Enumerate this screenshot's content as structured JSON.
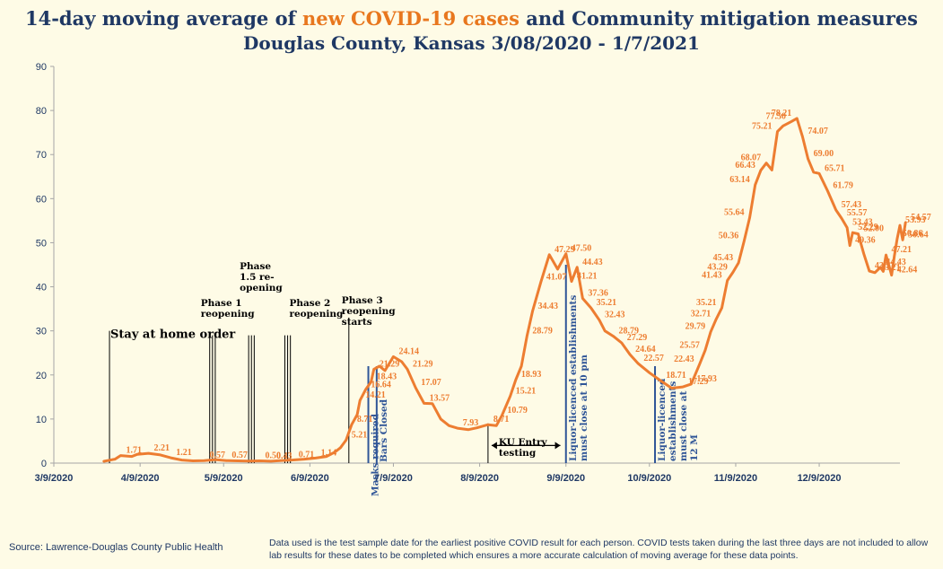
{
  "title": {
    "prefix": "14-day moving average of ",
    "highlight": "new COVID-19 cases",
    "suffix": " and Community mitigation measures",
    "line2": "Douglas County, Kansas 3/08/2020 - 1/7/2021"
  },
  "source": "Source:  Lawrence-Douglas County Public Health",
  "note": "Data used is the test sample date for the earliest positive COVID result for each person.  COVID tests taken during the last three days are not included to allow lab results for these dates to be completed which ensures a more accurate calculation of moving average for these data points.",
  "colors": {
    "line": "#ed7d31",
    "title": "#1f3864",
    "annotation_blue": "#2f5597",
    "background": "#fefbe6"
  },
  "chart_data": {
    "type": "line",
    "title": "14-day moving average of new COVID-19 cases and Community mitigation measures Douglas County, Kansas 3/08/2020 - 1/7/2021",
    "xlabel": "",
    "ylabel": "",
    "ylim": [
      0,
      90
    ],
    "yticks": [
      0,
      10,
      20,
      30,
      40,
      50,
      60,
      70,
      80,
      90
    ],
    "xlim": [
      "2020-03-09",
      "2021-01-07"
    ],
    "xticks": [
      "3/9/2020",
      "4/9/2020",
      "5/9/2020",
      "6/9/2020",
      "7/9/2020",
      "8/9/2020",
      "9/9/2020",
      "10/9/2020",
      "11/9/2020",
      "12/9/2020"
    ],
    "grid": false,
    "series": [
      {
        "points": [
          [
            "2020-03-27",
            0.4
          ],
          [
            "2020-03-31",
            0.9
          ],
          [
            "2020-04-02",
            1.71
          ],
          [
            "2020-04-06",
            1.5
          ],
          [
            "2020-04-08",
            2.0
          ],
          [
            "2020-04-12",
            2.21
          ],
          [
            "2020-04-16",
            1.9
          ],
          [
            "2020-04-20",
            1.21
          ],
          [
            "2020-04-24",
            0.7
          ],
          [
            "2020-04-28",
            0.5
          ],
          [
            "2020-05-02",
            0.57
          ],
          [
            "2020-05-06",
            0.8
          ],
          [
            "2020-05-10",
            0.57
          ],
          [
            "2020-05-14",
            0.5
          ],
          [
            "2020-05-18",
            0.45
          ],
          [
            "2020-05-22",
            0.5
          ],
          [
            "2020-05-26",
            0.43
          ],
          [
            "2020-05-30",
            0.6
          ],
          [
            "2020-06-03",
            0.71
          ],
          [
            "2020-06-07",
            0.9
          ],
          [
            "2020-06-11",
            1.14
          ],
          [
            "2020-06-15",
            1.5
          ],
          [
            "2020-06-18",
            2.5
          ],
          [
            "2020-06-20",
            3.5
          ],
          [
            "2020-06-22",
            5.21
          ],
          [
            "2020-06-24",
            8.71
          ],
          [
            "2020-06-26",
            11.0
          ],
          [
            "2020-06-27",
            14.21
          ],
          [
            "2020-06-29",
            16.64
          ],
          [
            "2020-07-01",
            18.43
          ],
          [
            "2020-07-02",
            21.29
          ],
          [
            "2020-07-04",
            22.0
          ],
          [
            "2020-07-06",
            21.0
          ],
          [
            "2020-07-09",
            24.14
          ],
          [
            "2020-07-12",
            23.0
          ],
          [
            "2020-07-14",
            21.29
          ],
          [
            "2020-07-17",
            17.07
          ],
          [
            "2020-07-20",
            13.57
          ],
          [
            "2020-07-23",
            13.5
          ],
          [
            "2020-07-26",
            10.0
          ],
          [
            "2020-07-29",
            8.5
          ],
          [
            "2020-08-01",
            7.93
          ],
          [
            "2020-08-05",
            7.6
          ],
          [
            "2020-08-08",
            8.0
          ],
          [
            "2020-08-12",
            8.71
          ],
          [
            "2020-08-15",
            8.5
          ],
          [
            "2020-08-17",
            10.79
          ],
          [
            "2020-08-20",
            15.21
          ],
          [
            "2020-08-22",
            18.93
          ],
          [
            "2020-08-24",
            22.0
          ],
          [
            "2020-08-26",
            28.79
          ],
          [
            "2020-08-28",
            34.43
          ],
          [
            "2020-08-31",
            41.07
          ],
          [
            "2020-09-03",
            47.29
          ],
          [
            "2020-09-06",
            44.0
          ],
          [
            "2020-09-09",
            47.5
          ],
          [
            "2020-09-11",
            41.21
          ],
          [
            "2020-09-13",
            44.43
          ],
          [
            "2020-09-15",
            37.36
          ],
          [
            "2020-09-18",
            35.21
          ],
          [
            "2020-09-21",
            32.43
          ],
          [
            "2020-09-23",
            30.0
          ],
          [
            "2020-09-26",
            28.79
          ],
          [
            "2020-09-29",
            27.29
          ],
          [
            "2020-10-02",
            24.64
          ],
          [
            "2020-10-05",
            22.57
          ],
          [
            "2020-10-09",
            20.5
          ],
          [
            "2020-10-13",
            18.71
          ],
          [
            "2020-10-17",
            17.0
          ],
          [
            "2020-10-21",
            17.29
          ],
          [
            "2020-10-24",
            17.93
          ],
          [
            "2020-10-27",
            22.43
          ],
          [
            "2020-10-29",
            25.57
          ],
          [
            "2020-10-31",
            29.79
          ],
          [
            "2020-11-02",
            32.71
          ],
          [
            "2020-11-04",
            35.21
          ],
          [
            "2020-11-06",
            41.43
          ],
          [
            "2020-11-08",
            43.29
          ],
          [
            "2020-11-10",
            45.43
          ],
          [
            "2020-11-12",
            50.36
          ],
          [
            "2020-11-14",
            55.64
          ],
          [
            "2020-11-16",
            63.14
          ],
          [
            "2020-11-18",
            66.43
          ],
          [
            "2020-11-20",
            68.07
          ],
          [
            "2020-11-22",
            66.5
          ],
          [
            "2020-11-24",
            75.21
          ],
          [
            "2020-11-26",
            76.5
          ],
          [
            "2020-11-29",
            77.5
          ],
          [
            "2020-12-01",
            78.21
          ],
          [
            "2020-12-03",
            74.07
          ],
          [
            "2020-12-05",
            69.0
          ],
          [
            "2020-12-07",
            66.0
          ],
          [
            "2020-12-09",
            65.71
          ],
          [
            "2020-12-12",
            61.79
          ],
          [
            "2020-12-15",
            57.43
          ],
          [
            "2020-12-17",
            55.57
          ],
          [
            "2020-12-19",
            53.43
          ],
          [
            "2020-12-20",
            49.36
          ],
          [
            "2020-12-21",
            52.29
          ],
          [
            "2020-12-23",
            52.0
          ],
          [
            "2020-12-25",
            47.5
          ],
          [
            "2020-12-27",
            43.57
          ],
          [
            "2020-12-29",
            43.21
          ],
          [
            "2020-12-31",
            44.43
          ],
          [
            "2021-01-01",
            43.5
          ],
          [
            "2021-01-02",
            47.21
          ],
          [
            "2021-01-04",
            42.64
          ],
          [
            "2021-01-05",
            47.0
          ],
          [
            "2021-01-06",
            50.86
          ],
          [
            "2021-01-07",
            53.93
          ],
          [
            "2021-01-08",
            50.64
          ],
          [
            "2021-01-09",
            54.57
          ]
        ]
      }
    ],
    "data_labels": [
      {
        "date": "2020-04-02",
        "text": "1.71"
      },
      {
        "date": "2020-04-12",
        "text": "2.21"
      },
      {
        "date": "2020-04-20",
        "text": "1.21"
      },
      {
        "date": "2020-05-02",
        "text": "0.57"
      },
      {
        "date": "2020-05-10",
        "text": "0.57"
      },
      {
        "date": "2020-05-22",
        "text": "0.50"
      },
      {
        "date": "2020-05-26",
        "text": "0.43"
      },
      {
        "date": "2020-06-03",
        "text": "0.71"
      },
      {
        "date": "2020-06-11",
        "text": "1.14"
      },
      {
        "date": "2020-06-22",
        "text": "5.21"
      },
      {
        "date": "2020-06-24",
        "text": "8.71"
      },
      {
        "date": "2020-06-27",
        "text": "14.21"
      },
      {
        "date": "2020-06-29",
        "text": "16.64"
      },
      {
        "date": "2020-07-01",
        "text": "18.43"
      },
      {
        "date": "2020-07-02",
        "text": "21.29"
      },
      {
        "date": "2020-07-09",
        "text": "24.14"
      },
      {
        "date": "2020-07-14",
        "text": "21.29"
      },
      {
        "date": "2020-07-17",
        "text": "17.07"
      },
      {
        "date": "2020-07-20",
        "text": "13.57"
      },
      {
        "date": "2020-08-01",
        "text": "7.93"
      },
      {
        "date": "2020-08-12",
        "text": "8.71"
      },
      {
        "date": "2020-08-17",
        "text": "10.79"
      },
      {
        "date": "2020-08-20",
        "text": "15.21"
      },
      {
        "date": "2020-08-22",
        "text": "18.93"
      },
      {
        "date": "2020-08-26",
        "text": "28.79"
      },
      {
        "date": "2020-08-28",
        "text": "34.43"
      },
      {
        "date": "2020-08-31",
        "text": "41.07"
      },
      {
        "date": "2020-09-03",
        "text": "47.29"
      },
      {
        "date": "2020-09-09",
        "text": "47.50"
      },
      {
        "date": "2020-09-13",
        "text": "44.43"
      },
      {
        "date": "2020-09-11",
        "text": "41.21"
      },
      {
        "date": "2020-09-15",
        "text": "37.36"
      },
      {
        "date": "2020-09-18",
        "text": "35.21"
      },
      {
        "date": "2020-09-21",
        "text": "32.43"
      },
      {
        "date": "2020-09-26",
        "text": "28.79"
      },
      {
        "date": "2020-09-29",
        "text": "27.29"
      },
      {
        "date": "2020-10-02",
        "text": "24.64"
      },
      {
        "date": "2020-10-05",
        "text": "22.57"
      },
      {
        "date": "2020-10-13",
        "text": "18.71"
      },
      {
        "date": "2020-10-21",
        "text": "17.29"
      },
      {
        "date": "2020-10-24",
        "text": "17.93"
      },
      {
        "date": "2020-10-27",
        "text": "22.43"
      },
      {
        "date": "2020-10-29",
        "text": "25.57"
      },
      {
        "date": "2020-10-31",
        "text": "29.79"
      },
      {
        "date": "2020-11-02",
        "text": "32.71"
      },
      {
        "date": "2020-11-04",
        "text": "35.21"
      },
      {
        "date": "2020-11-06",
        "text": "41.43"
      },
      {
        "date": "2020-11-08",
        "text": "43.29"
      },
      {
        "date": "2020-11-10",
        "text": "45.43"
      },
      {
        "date": "2020-11-12",
        "text": "50.36"
      },
      {
        "date": "2020-11-14",
        "text": "55.64"
      },
      {
        "date": "2020-11-16",
        "text": "63.14"
      },
      {
        "date": "2020-11-18",
        "text": "66.43"
      },
      {
        "date": "2020-11-20",
        "text": "68.07"
      },
      {
        "date": "2020-11-24",
        "text": "75.21"
      },
      {
        "date": "2020-11-29",
        "text": "77.50"
      },
      {
        "date": "2020-12-01",
        "text": "78.21"
      },
      {
        "date": "2020-12-03",
        "text": "74.07"
      },
      {
        "date": "2020-12-05",
        "text": "69.00"
      },
      {
        "date": "2020-12-09",
        "text": "65.71"
      },
      {
        "date": "2020-12-12",
        "text": "61.79"
      },
      {
        "date": "2020-12-15",
        "text": "57.43"
      },
      {
        "date": "2020-12-17",
        "text": "55.57"
      },
      {
        "date": "2020-12-19",
        "text": "53.43"
      },
      {
        "date": "2020-12-20",
        "text": "49.36"
      },
      {
        "date": "2020-12-21",
        "text": "52.29"
      },
      {
        "date": "2020-12-23",
        "text": "52.00"
      },
      {
        "date": "2020-12-27",
        "text": "43.57"
      },
      {
        "date": "2020-12-29",
        "text": "43.21"
      },
      {
        "date": "2020-12-31",
        "text": "44.43"
      },
      {
        "date": "2021-01-02",
        "text": "47.21"
      },
      {
        "date": "2021-01-04",
        "text": "42.64"
      },
      {
        "date": "2021-01-06",
        "text": "50.86"
      },
      {
        "date": "2021-01-07",
        "text": "53.93"
      },
      {
        "date": "2021-01-08",
        "text": "50.64"
      },
      {
        "date": "2021-01-09",
        "text": "54.57"
      }
    ],
    "annotations": [
      {
        "dates": [
          "2020-03-29"
        ],
        "top": 30,
        "text": "Stay at home order",
        "color": "black",
        "orientation": "horizontal"
      },
      {
        "dates": [
          "2020-05-04",
          "2020-05-05",
          "2020-05-06"
        ],
        "top": 29,
        "text": "Phase 1 reopening",
        "color": "black",
        "orientation": "horizontal"
      },
      {
        "dates": [
          "2020-05-18",
          "2020-05-19",
          "2020-05-20"
        ],
        "top": 29,
        "text": "Phase 1.5 re-opening",
        "color": "black",
        "orientation": "horizontal"
      },
      {
        "dates": [
          "2020-05-31",
          "2020-06-01",
          "2020-06-02"
        ],
        "top": 29,
        "text": "Phase 2 reopening",
        "color": "black",
        "orientation": "horizontal"
      },
      {
        "dates": [
          "2020-06-30"
        ],
        "top": 22,
        "text": "Masks required",
        "color": "blue",
        "orientation": "vertical"
      },
      {
        "dates": [
          "2020-07-03"
        ],
        "top": 22,
        "text": "Bars Closed",
        "color": "blue",
        "orientation": "vertical"
      },
      {
        "dates": [
          "2020-06-23"
        ],
        "top": 33,
        "text": "Phase 3 reopening starts",
        "color": "black",
        "orientation": "horizontal"
      },
      {
        "dates": [
          "2020-08-12"
        ],
        "top": 9,
        "text": "KU  Entry testing",
        "color": "black",
        "orientation": "horizontal"
      },
      {
        "dates": [
          "2020-09-09"
        ],
        "top": 45,
        "text": "Liquor-licenced establishments must close at 10 pm",
        "color": "blue",
        "orientation": "vertical"
      },
      {
        "dates": [
          "2020-10-11"
        ],
        "top": 22,
        "text": "Liquor-licenced establishments must close at 12 M",
        "color": "blue",
        "orientation": "vertical"
      }
    ]
  }
}
